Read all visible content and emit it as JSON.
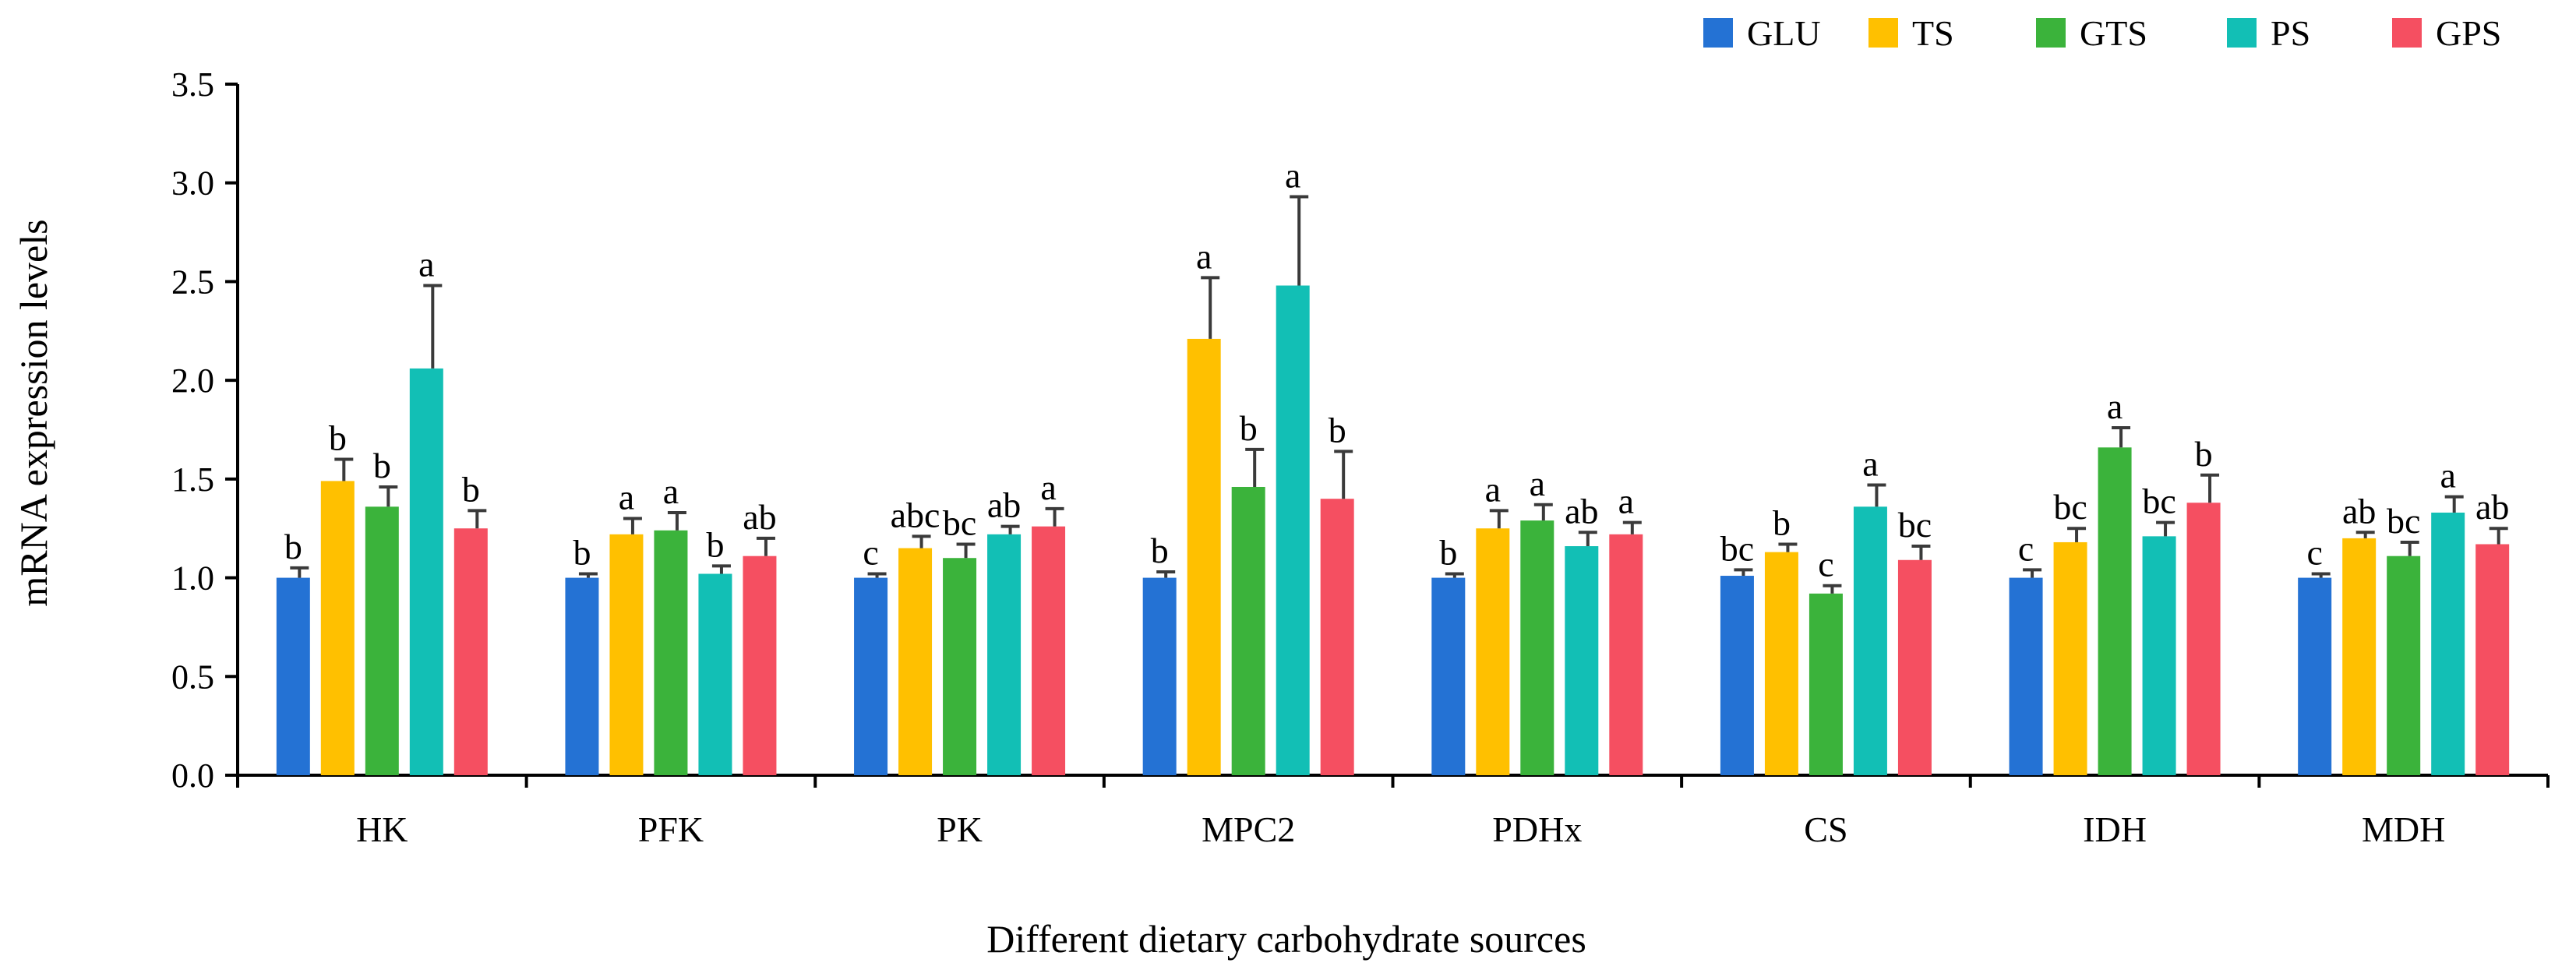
{
  "chart_data": {
    "type": "bar",
    "xlabel": "Different dietary carbohydrate sources",
    "ylabel": "mRNA expression levels",
    "ylim": [
      0,
      3.5
    ],
    "yticks": [
      0.0,
      0.5,
      1.0,
      1.5,
      2.0,
      2.5,
      3.0,
      3.5
    ],
    "ytick_labels": [
      "0.0",
      "0.5",
      "1.0",
      "1.5",
      "2.0",
      "2.5",
      "3.0",
      "3.5"
    ],
    "legend_position": "top-right",
    "categories": [
      "HK",
      "PFK",
      "PK",
      "MPC2",
      "PDHx",
      "CS",
      "IDH",
      "MDH"
    ],
    "series": [
      {
        "name": "GLU",
        "color": "#2472D4",
        "values": [
          1.0,
          1.0,
          1.0,
          1.0,
          1.0,
          1.01,
          1.0,
          1.0
        ],
        "errors": [
          0.05,
          0.02,
          0.02,
          0.03,
          0.02,
          0.03,
          0.04,
          0.02
        ],
        "labels": [
          "b",
          "b",
          "c",
          "b",
          "b",
          "bc",
          "c",
          "c"
        ]
      },
      {
        "name": "TS",
        "color": "#FFC000",
        "values": [
          1.49,
          1.22,
          1.15,
          2.21,
          1.25,
          1.13,
          1.18,
          1.2
        ],
        "errors": [
          0.11,
          0.08,
          0.06,
          0.31,
          0.09,
          0.04,
          0.07,
          0.03
        ],
        "labels": [
          "b",
          "a",
          "abc",
          "a",
          "a",
          "b",
          "bc",
          "ab"
        ]
      },
      {
        "name": "GTS",
        "color": "#3BB33B",
        "values": [
          1.36,
          1.24,
          1.1,
          1.46,
          1.29,
          0.92,
          1.66,
          1.11
        ],
        "errors": [
          0.1,
          0.09,
          0.07,
          0.19,
          0.08,
          0.04,
          0.1,
          0.07
        ],
        "labels": [
          "b",
          "a",
          "bc",
          "b",
          "a",
          "c",
          "a",
          "bc"
        ]
      },
      {
        "name": "PS",
        "color": "#12BFB5",
        "values": [
          2.06,
          1.02,
          1.22,
          2.48,
          1.16,
          1.36,
          1.21,
          1.33
        ],
        "errors": [
          0.42,
          0.04,
          0.04,
          0.45,
          0.07,
          0.11,
          0.07,
          0.08
        ],
        "labels": [
          "a",
          "b",
          "ab",
          "a",
          "ab",
          "a",
          "bc",
          "a"
        ]
      },
      {
        "name": "GPS",
        "color": "#F54F61",
        "values": [
          1.25,
          1.11,
          1.26,
          1.4,
          1.22,
          1.09,
          1.38,
          1.17
        ],
        "errors": [
          0.09,
          0.09,
          0.09,
          0.24,
          0.06,
          0.07,
          0.14,
          0.08
        ],
        "labels": [
          "b",
          "ab",
          "a",
          "b",
          "a",
          "bc",
          "b",
          "ab"
        ]
      }
    ]
  }
}
